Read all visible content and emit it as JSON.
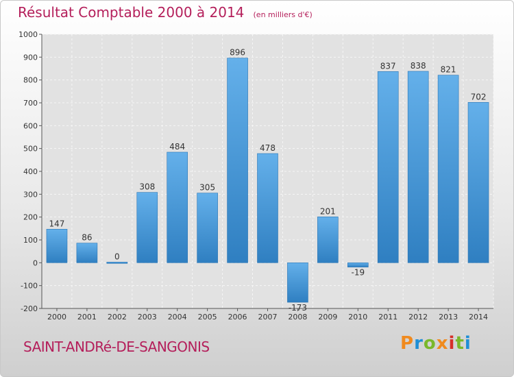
{
  "title": "Résultat Comptable 2000 à 2014",
  "subtitle": "(en milliers d'€)",
  "town": "SAINT-ANDRé-DE-SANGONIS",
  "logo": {
    "text": "Proxiti",
    "colors": [
      "#f08a1e",
      "#1f8fd6",
      "#7ab82b",
      "#f08a1e",
      "#d6302a",
      "#7ab82b",
      "#1f8fd6"
    ]
  },
  "colors": {
    "bar_top": "#64b0ea",
    "bar_bottom": "#2f7fc1",
    "title": "#b41e5a"
  },
  "chart_data": {
    "type": "bar",
    "title": "Résultat Comptable 2000 à 2014",
    "subtitle": "(en milliers d'€)",
    "categories": [
      "2000",
      "2001",
      "2002",
      "2003",
      "2004",
      "2005",
      "2006",
      "2007",
      "2008",
      "2009",
      "2010",
      "2011",
      "2012",
      "2013",
      "2014"
    ],
    "values": [
      147,
      86,
      0,
      308,
      484,
      305,
      896,
      478,
      -173,
      201,
      -19,
      837,
      838,
      821,
      702
    ],
    "value_labels": [
      "147",
      "86",
      "0",
      "308",
      "484",
      "305",
      "896",
      "478",
      "-173",
      "201",
      "-19",
      "837",
      "838",
      "821",
      "702"
    ],
    "ylim": [
      -200,
      1000
    ],
    "yticks": [
      -200,
      -100,
      0,
      100,
      200,
      300,
      400,
      500,
      600,
      700,
      800,
      900,
      1000
    ],
    "ytick_labels": [
      "-200",
      "-100",
      "0",
      "100",
      "200",
      "300",
      "400",
      "500",
      "600",
      "700",
      "800",
      "900",
      "1000"
    ],
    "grid": true,
    "xlabel": "",
    "ylabel": ""
  }
}
